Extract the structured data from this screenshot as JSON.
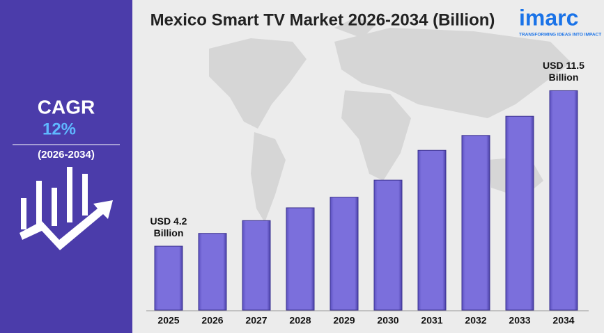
{
  "chart_data": {
    "type": "bar",
    "title": "Mexico Smart TV Market 2026-2034 (Billion)",
    "categories": [
      "2025",
      "2026",
      "2027",
      "2028",
      "2029",
      "2030",
      "2031",
      "2032",
      "2033",
      "2034"
    ],
    "values": [
      4.2,
      4.8,
      5.4,
      6.0,
      6.5,
      7.3,
      8.7,
      9.4,
      10.3,
      11.5
    ],
    "value_labels": [
      "USD 4.2 Billion",
      null,
      null,
      null,
      null,
      null,
      null,
      null,
      null,
      "USD 11.5 Billion"
    ],
    "color": "#7b6fdc",
    "ylim": [
      1.2,
      13.8
    ]
  },
  "cagr": {
    "label": "CAGR",
    "value": "12%",
    "period": "(2026-2034)"
  },
  "logo": {
    "name": "imarc",
    "tagline": "TRANSFORMING IDEAS INTO IMPACT"
  }
}
